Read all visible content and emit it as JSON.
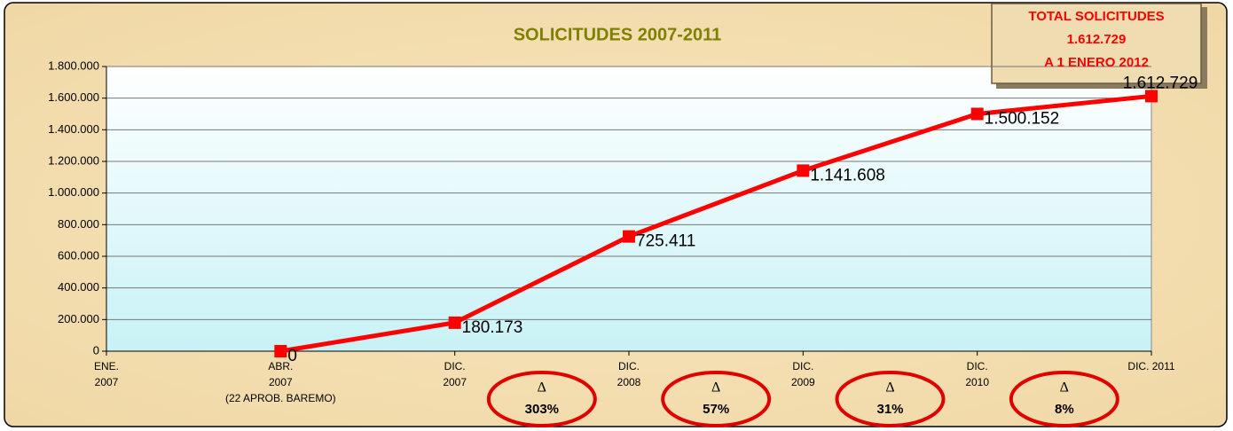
{
  "chart_data": {
    "type": "line",
    "title": "SOLICITUDES 2007-2011",
    "categories": [
      "ENE.\n2007",
      "ABR.\n2007\n(22 APROB. BAREMO)",
      "DIC.\n2007",
      "DIC.\n2008",
      "DIC.\n2009",
      "DIC.\n2010",
      "DIC. 2011"
    ],
    "series": [
      {
        "name": "Solicitudes",
        "color": "#ff0000",
        "values": [
          null,
          0,
          180173,
          725411,
          1141608,
          1500152,
          1612729
        ],
        "value_labels": [
          null,
          "0",
          "180.173",
          "725.411",
          "1.141.608",
          "1.500.152",
          "1.612.729"
        ]
      }
    ],
    "ylim": [
      0,
      1800000
    ],
    "yticks": [
      0,
      {
        "value": 200000,
        "label": "200.000"
      },
      {
        "value": 400000,
        "label": "400.000"
      },
      {
        "value": 600000,
        "label": "600.000"
      },
      {
        "value": 800000,
        "label": "800.000"
      },
      {
        "value": 1000000,
        "label": "1.000.000"
      },
      {
        "value": 1200000,
        "label": "1.200.000"
      },
      {
        "value": 1400000,
        "label": "1.400.000"
      },
      {
        "value": 1600000,
        "label": "1.600.000"
      },
      {
        "value": 1800000,
        "label": "1.800.000"
      }
    ],
    "grid": true,
    "total_box": [
      "TOTAL SOLICITUDES",
      "1.612.729",
      "A 1 ENERO 2012"
    ],
    "annotations": [
      {
        "symbol": "Δ",
        "text": "303%"
      },
      {
        "symbol": "Δ",
        "text": "57%"
      },
      {
        "symbol": "Δ",
        "text": "31%"
      },
      {
        "symbol": "Δ",
        "text": "8%"
      }
    ]
  }
}
